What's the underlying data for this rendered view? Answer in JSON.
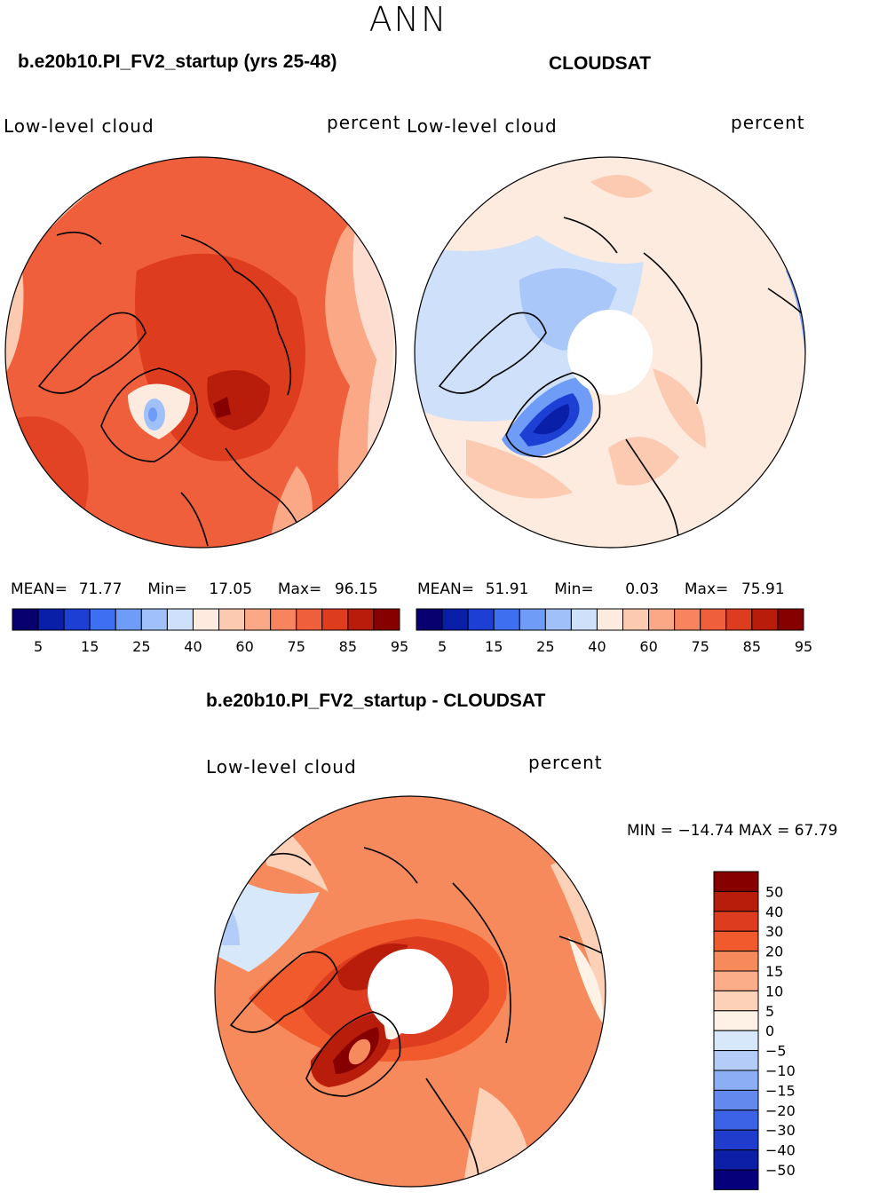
{
  "season": "ANN",
  "panels": [
    {
      "id": "model",
      "case_title": "b.e20b10.PI_FV2_startup (yrs 25-48)",
      "variable": "Low-level cloud",
      "units": "percent",
      "stats": {
        "mean_label": "MEAN=",
        "mean": "71.77",
        "min_label": "Min=",
        "min": "17.05",
        "max_label": "Max=",
        "max": "96.15"
      }
    },
    {
      "id": "obs",
      "case_title": "CLOUDSAT",
      "variable": "Low-level cloud",
      "units": "percent",
      "stats": {
        "mean_label": "MEAN=",
        "mean": "51.91",
        "min_label": "Min=",
        "min": "0.03",
        "max_label": "Max=",
        "max": "75.91"
      }
    }
  ],
  "difference": {
    "title": "b.e20b10.PI_FV2_startup - CLOUDSAT",
    "variable": "Low-level cloud",
    "units": "percent",
    "min_max_text": "MIN = −14.74 MAX =   67.79"
  },
  "abs_colorbar": {
    "colors": [
      "#08006e",
      "#0a1fa8",
      "#1d3fd4",
      "#3d6ff0",
      "#6e9cf6",
      "#9fc0f8",
      "#cfe1fa",
      "#fdebdf",
      "#fccab0",
      "#fba886",
      "#f7845f",
      "#f05f3c",
      "#de3c1f",
      "#b81d0c",
      "#870000"
    ],
    "tick_labels": [
      "5",
      "15",
      "25",
      "40",
      "60",
      "75",
      "85",
      "95"
    ]
  },
  "diff_colorbar": {
    "colors_top_to_bottom": [
      "#870000",
      "#b81d0c",
      "#de3c1f",
      "#f05a2c",
      "#f78a5c",
      "#fbad8a",
      "#fdd0b8",
      "#fef1e6",
      "#d8e8fb",
      "#b4cdf8",
      "#8caef4",
      "#6389ef",
      "#3c62e6",
      "#1f3ccd",
      "#0c1fa6",
      "#06007a"
    ],
    "tick_labels": [
      "50",
      "40",
      "30",
      "20",
      "15",
      "10",
      "5",
      "0",
      "−5",
      "−10",
      "−15",
      "−20",
      "−30",
      "−40",
      "−50"
    ]
  }
}
